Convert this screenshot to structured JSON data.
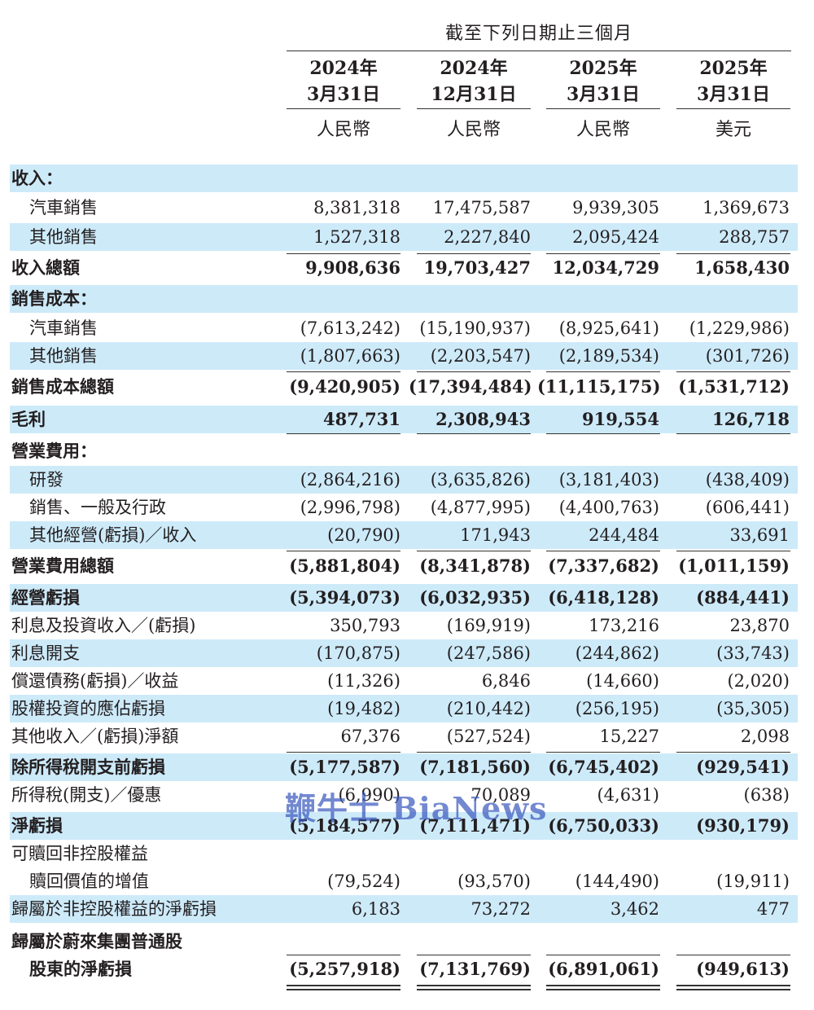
{
  "header": {
    "period": "截至下列日期止三個月"
  },
  "columns": [
    {
      "year": "2024年",
      "date": "3月31日",
      "currency": "人民幣"
    },
    {
      "year": "2024年",
      "date": "12月31日",
      "currency": "人民幣"
    },
    {
      "year": "2025年",
      "date": "3月31日",
      "currency": "人民幣"
    },
    {
      "year": "2025年",
      "date": "3月31日",
      "currency": "美元"
    }
  ],
  "rows": {
    "revenue_heading": {
      "label": "收入："
    },
    "vehicle_sales": {
      "label": "汽車銷售",
      "v": [
        "8,381,318",
        "17,475,587",
        "9,939,305",
        "1,369,673"
      ]
    },
    "other_sales": {
      "label": "其他銷售",
      "v": [
        "1,527,318",
        "2,227,840",
        "2,095,424",
        "288,757"
      ]
    },
    "total_revenue": {
      "label": "收入總額",
      "v": [
        "9,908,636",
        "19,703,427",
        "12,034,729",
        "1,658,430"
      ]
    },
    "cost_heading": {
      "label": "銷售成本："
    },
    "cost_vehicle": {
      "label": "汽車銷售",
      "v": [
        "(7,613,242)",
        "(15,190,937)",
        "(8,925,641)",
        "(1,229,986)"
      ]
    },
    "cost_other": {
      "label": "其他銷售",
      "v": [
        "(1,807,663)",
        "(2,203,547)",
        "(2,189,534)",
        "(301,726)"
      ]
    },
    "total_cost": {
      "label": "銷售成本總額",
      "v": [
        "(9,420,905)",
        "(17,394,484)",
        "(11,115,175)",
        "(1,531,712)"
      ]
    },
    "gross_profit": {
      "label": "毛利",
      "v": [
        "487,731",
        "2,308,943",
        "919,554",
        "126,718"
      ]
    },
    "opex_heading": {
      "label": "營業費用："
    },
    "rnd": {
      "label": "研發",
      "v": [
        "(2,864,216)",
        "(3,635,826)",
        "(3,181,403)",
        "(438,409)"
      ]
    },
    "sga": {
      "label": "銷售、一般及行政",
      "v": [
        "(2,996,798)",
        "(4,877,995)",
        "(4,400,763)",
        "(606,441)"
      ]
    },
    "other_op": {
      "label": "其他經營(虧損)／收入",
      "v": [
        "(20,790)",
        "171,943",
        "244,484",
        "33,691"
      ]
    },
    "total_opex": {
      "label": "營業費用總額",
      "v": [
        "(5,881,804)",
        "(8,341,878)",
        "(7,337,682)",
        "(1,011,159)"
      ]
    },
    "operating_loss": {
      "label": "經營虧損",
      "v": [
        "(5,394,073)",
        "(6,032,935)",
        "(6,418,128)",
        "(884,441)"
      ]
    },
    "interest_income": {
      "label": "利息及投資收入／(虧損)",
      "v": [
        "350,793",
        "(169,919)",
        "173,216",
        "23,870"
      ]
    },
    "interest_expense": {
      "label": "利息開支",
      "v": [
        "(170,875)",
        "(247,586)",
        "(244,862)",
        "(33,743)"
      ]
    },
    "debt_extinguish": {
      "label": "償還債務(虧損)／收益",
      "v": [
        "(11,326)",
        "6,846",
        "(14,660)",
        "(2,020)"
      ]
    },
    "equity_loss": {
      "label": "股權投資的應佔虧損",
      "v": [
        "(19,482)",
        "(210,442)",
        "(256,195)",
        "(35,305)"
      ]
    },
    "other_income": {
      "label": "其他收入／(虧損)淨額",
      "v": [
        "67,376",
        "(527,524)",
        "15,227",
        "2,098"
      ]
    },
    "pretax_loss": {
      "label": "除所得稅開支前虧損",
      "v": [
        "(5,177,587)",
        "(7,181,560)",
        "(6,745,402)",
        "(929,541)"
      ]
    },
    "income_tax": {
      "label": "所得稅(開支)／優惠",
      "v": [
        "(6,990)",
        "70,089",
        "(4,631)",
        "(638)"
      ]
    },
    "net_loss": {
      "label": "淨虧損",
      "v": [
        "(5,184,577)",
        "(7,111,471)",
        "(6,750,033)",
        "(930,179)"
      ]
    },
    "redeemable_nci_1": {
      "label": "可贖回非控股權益"
    },
    "redeemable_nci_2": {
      "label": "贖回價值的增值",
      "v": [
        "(79,524)",
        "(93,570)",
        "(144,490)",
        "(19,911)"
      ]
    },
    "nci_loss": {
      "label": "歸屬於非控股權益的淨虧損",
      "v": [
        "6,183",
        "73,272",
        "3,462",
        "477"
      ]
    },
    "attrib_1": {
      "label": "歸屬於蔚來集團普通股"
    },
    "attrib_2": {
      "label": "股東的淨虧損",
      "v": [
        "(5,257,918)",
        "(7,131,769)",
        "(6,891,061)",
        "(949,613)"
      ]
    }
  },
  "watermark": {
    "text": "鞭牛士 BiaNews"
  }
}
